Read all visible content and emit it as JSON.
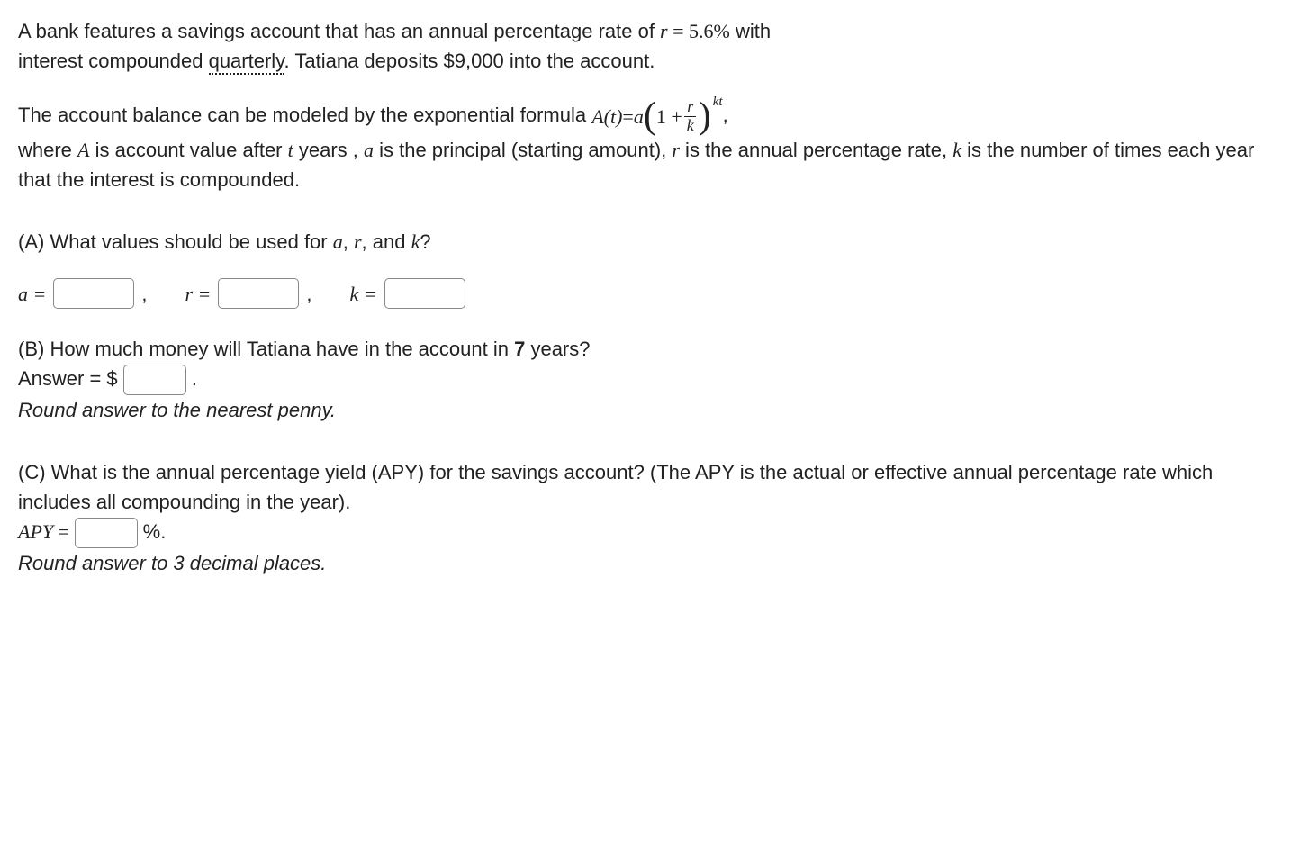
{
  "intro": {
    "line1_pre": "A bank features a savings account that has an annual percentage rate of ",
    "r_var": "r",
    "eq": " = ",
    "rate": "5.6%",
    "line1_post": " with",
    "line2_pre": "interest compounded ",
    "quarterly": "quarterly",
    "line2_post": ". Tatiana deposits $9,000 into the account."
  },
  "model": {
    "line1_pre": "The account balance can be modeled by the exponential formula ",
    "A_of_t": "A(t)",
    "eq": " = ",
    "a_var": "a",
    "one_plus": "1 + ",
    "frac_num": "r",
    "frac_den": "k",
    "exp": "kt",
    "comma": ",",
    "line2": "where ",
    "A_var": "A",
    "line2b": " is account value after ",
    "t_var": "t",
    "line2c": " years , ",
    "a_var2": "a",
    "line2d": " is the principal (starting amount), ",
    "r_var": "r",
    "line2e": " is the annual percentage rate, ",
    "k_var": "k",
    "line2f": " is the number of times each year that the interest is compounded."
  },
  "partA": {
    "prompt_pre": "(A) What values should be used for ",
    "a": "a",
    "sep1": ", ",
    "r": "r",
    "sep2": ", and ",
    "k": "k",
    "q": "?",
    "a_eq": "a =",
    "r_eq": "r =",
    "k_eq": "k =",
    "comma": ","
  },
  "partB": {
    "prompt": "(B) How much money will Tatiana have in the account in ",
    "years": "7",
    "prompt_post": " years?",
    "answer_label": "Answer = $",
    "period": ".",
    "note": "Round answer to the nearest penny."
  },
  "partC": {
    "prompt": "(C) What is the annual percentage yield (APY) for the savings account? (The APY is the actual or effective annual percentage rate which includes all compounding in the year).",
    "apy_label": "APY",
    "eq": " = ",
    "percent": "%.",
    "note": "Round answer to 3 decimal places."
  }
}
